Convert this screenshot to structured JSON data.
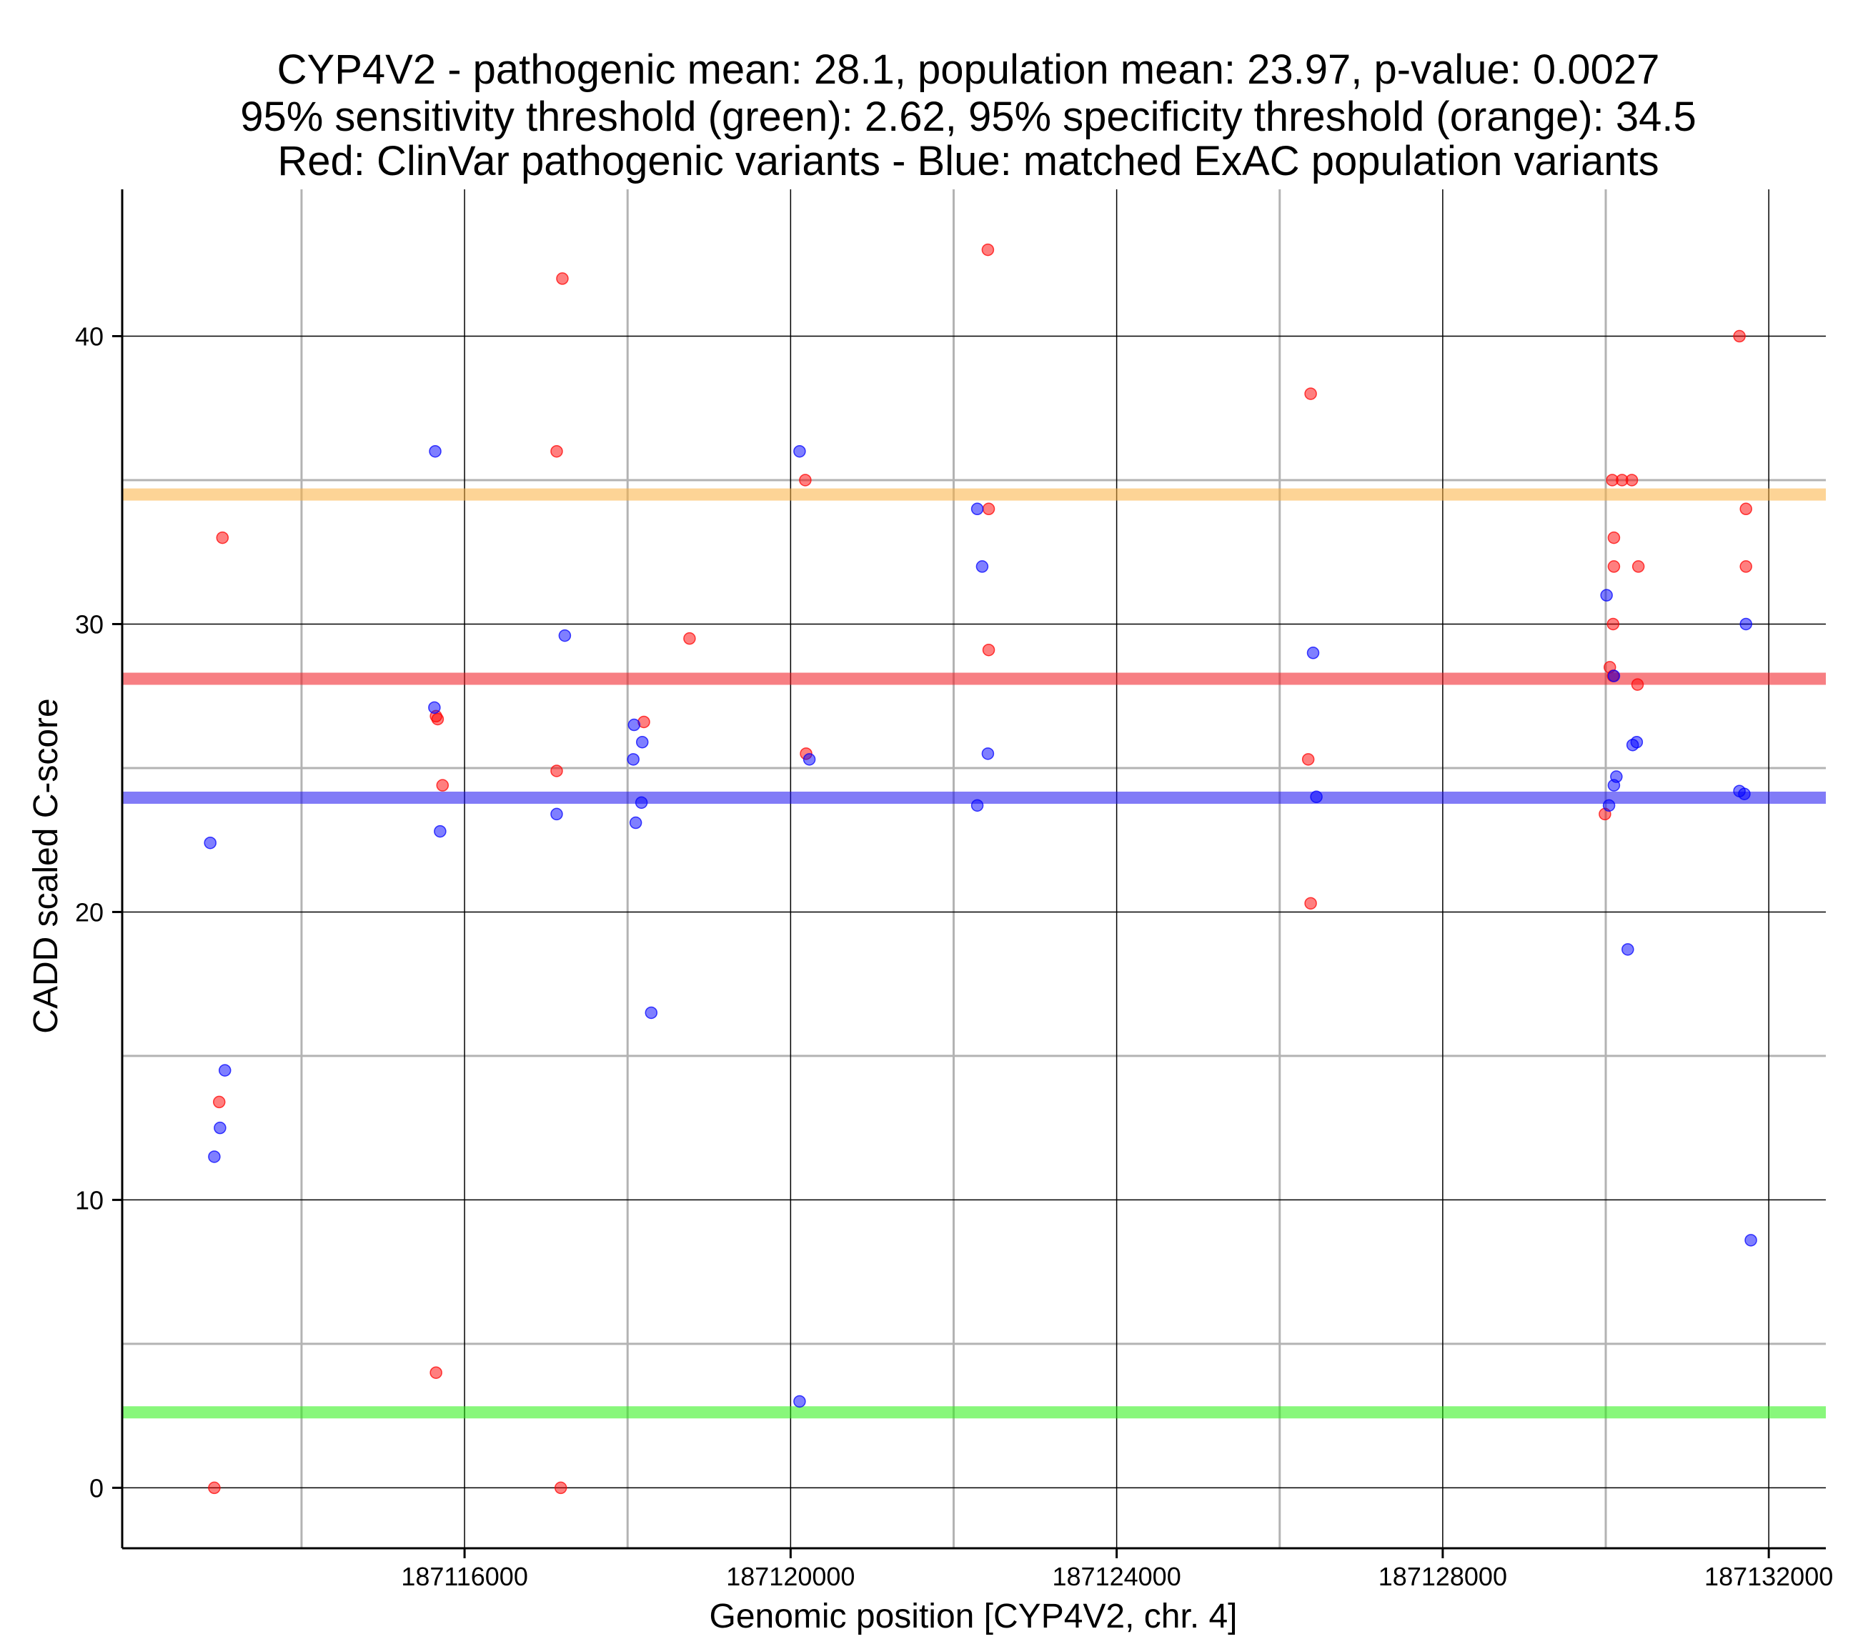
{
  "chart_data": {
    "type": "scatter",
    "title_lines": [
      "CYP4V2 - pathogenic mean: 28.1, population mean: 23.97, p-value: 0.0027",
      "95% sensitivity threshold (green): 2.62, 95% specificity threshold (orange): 34.5",
      "Red: ClinVar pathogenic variants - Blue: matched ExAC population variants"
    ],
    "xlabel": "Genomic position [CYP4V2, chr. 4]",
    "ylabel": "CADD scaled C-score",
    "xlim": [
      187111800,
      187132700
    ],
    "ylim": [
      -2.1,
      45.1
    ],
    "x_ticks": [
      187116000,
      187120000,
      187124000,
      187128000,
      187132000
    ],
    "x_tick_labels": [
      "187116000",
      "187120000",
      "187124000",
      "187128000",
      "187132000"
    ],
    "x_minor_grid": [
      187114000,
      187118000,
      187122000,
      187126000,
      187130000
    ],
    "y_ticks": [
      0,
      10,
      20,
      30,
      40
    ],
    "y_tick_labels": [
      "0",
      "10",
      "20",
      "30",
      "40"
    ],
    "y_minor_grid": [
      5,
      15,
      25,
      35
    ],
    "hlines": [
      {
        "name": "specificity-threshold-line",
        "label": "95% specificity threshold",
        "y": 34.5,
        "color": "#fbb040"
      },
      {
        "name": "pathogenic-mean-line",
        "label": "pathogenic mean",
        "y": 28.1,
        "color": "#f0161e"
      },
      {
        "name": "population-mean-line",
        "label": "population mean",
        "y": 23.97,
        "color": "#1a0ef0"
      },
      {
        "name": "sensitivity-threshold-line",
        "label": "95% sensitivity threshold",
        "y": 2.62,
        "color": "#27f00f"
      }
    ],
    "series": [
      {
        "name": "ClinVar pathogenic variants",
        "color": "#ff0000",
        "points": [
          [
            187113030,
            33.0
          ],
          [
            187112990,
            13.4
          ],
          [
            187112930,
            0.0
          ],
          [
            187115650,
            26.8
          ],
          [
            187115670,
            26.7
          ],
          [
            187115730,
            24.4
          ],
          [
            187115650,
            4.0
          ],
          [
            187117200,
            42.0
          ],
          [
            187117130,
            36.0
          ],
          [
            187117130,
            24.9
          ],
          [
            187117180,
            0.0
          ],
          [
            187118200,
            26.6
          ],
          [
            187118760,
            29.5
          ],
          [
            187120180,
            35.0
          ],
          [
            187120190,
            25.5
          ],
          [
            187122420,
            43.0
          ],
          [
            187122430,
            34.0
          ],
          [
            187122430,
            29.1
          ],
          [
            187126380,
            38.0
          ],
          [
            187126350,
            25.3
          ],
          [
            187126380,
            20.3
          ],
          [
            187130080,
            35.0
          ],
          [
            187130200,
            35.0
          ],
          [
            187130320,
            35.0
          ],
          [
            187130100,
            33.0
          ],
          [
            187130100,
            32.0
          ],
          [
            187130400,
            32.0
          ],
          [
            187130090,
            30.0
          ],
          [
            187130050,
            28.5
          ],
          [
            187130090,
            28.2
          ],
          [
            187130390,
            27.9
          ],
          [
            187129990,
            23.4
          ],
          [
            187131640,
            40.0
          ],
          [
            187131720,
            34.0
          ],
          [
            187131720,
            32.0
          ]
        ]
      },
      {
        "name": "matched ExAC population variants",
        "color": "#0000ff",
        "points": [
          [
            187112880,
            22.4
          ],
          [
            187113060,
            14.5
          ],
          [
            187113000,
            12.5
          ],
          [
            187112930,
            11.5
          ],
          [
            187115640,
            36.0
          ],
          [
            187115630,
            27.1
          ],
          [
            187115700,
            22.8
          ],
          [
            187117230,
            29.6
          ],
          [
            187117130,
            23.4
          ],
          [
            187118080,
            26.5
          ],
          [
            187118180,
            25.9
          ],
          [
            187118070,
            25.3
          ],
          [
            187118170,
            23.8
          ],
          [
            187118100,
            23.1
          ],
          [
            187118290,
            16.5
          ],
          [
            187120110,
            36.0
          ],
          [
            187120230,
            25.3
          ],
          [
            187120110,
            3.0
          ],
          [
            187122290,
            34.0
          ],
          [
            187122350,
            32.0
          ],
          [
            187122420,
            25.5
          ],
          [
            187122290,
            23.7
          ],
          [
            187126410,
            29.0
          ],
          [
            187126450,
            24.0
          ],
          [
            187130010,
            31.0
          ],
          [
            187130330,
            25.8
          ],
          [
            187130380,
            25.9
          ],
          [
            187130100,
            28.2
          ],
          [
            187130130,
            24.7
          ],
          [
            187130100,
            24.4
          ],
          [
            187130040,
            23.7
          ],
          [
            187130270,
            18.7
          ],
          [
            187131720,
            30.0
          ],
          [
            187131640,
            24.2
          ],
          [
            187131700,
            24.1
          ],
          [
            187131780,
            8.6
          ]
        ]
      }
    ]
  }
}
